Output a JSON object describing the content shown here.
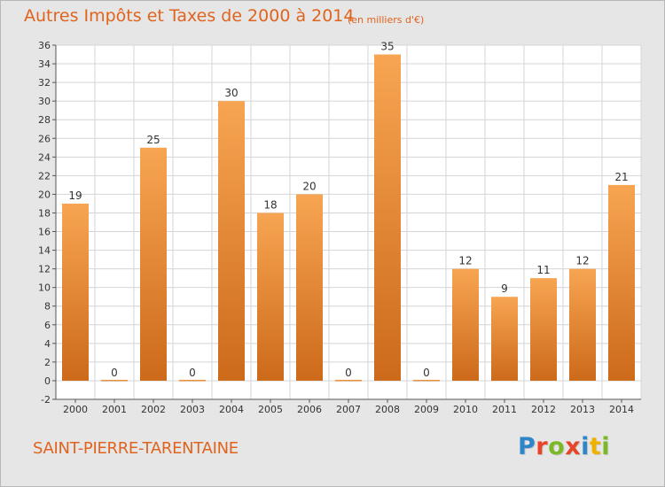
{
  "title": "Autres Impôts et Taxes de 2000 à 2014",
  "subtitle": "(en milliers d'€)",
  "commune": "SAINT-PIERRE-TARENTAINE",
  "logo": {
    "text": "Proxiti",
    "letter_colors": [
      "#2e86c8",
      "#e8442a",
      "#7ab828",
      "#e8442a",
      "#2e86c8",
      "#f0b000",
      "#7ab828"
    ]
  },
  "colors": {
    "accent": "#e0641e",
    "bar_top": "#f7a552",
    "bar_bottom": "#cc6a1a",
    "plot_bg": "#ffffff",
    "background": "#e6e6e6"
  },
  "chart_data": {
    "type": "bar",
    "categories": [
      "2000",
      "2001",
      "2002",
      "2003",
      "2004",
      "2005",
      "2006",
      "2007",
      "2008",
      "2009",
      "2010",
      "2011",
      "2012",
      "2013",
      "2014"
    ],
    "values": [
      19,
      0,
      25,
      0,
      30,
      18,
      20,
      0,
      35,
      0,
      12,
      9,
      11,
      12,
      21
    ],
    "ylim": [
      -2,
      36
    ],
    "yticks": [
      -2,
      0,
      2,
      4,
      6,
      8,
      10,
      12,
      14,
      16,
      18,
      20,
      22,
      24,
      26,
      28,
      30,
      32,
      34,
      36
    ],
    "grid": true,
    "data_labels": true
  }
}
